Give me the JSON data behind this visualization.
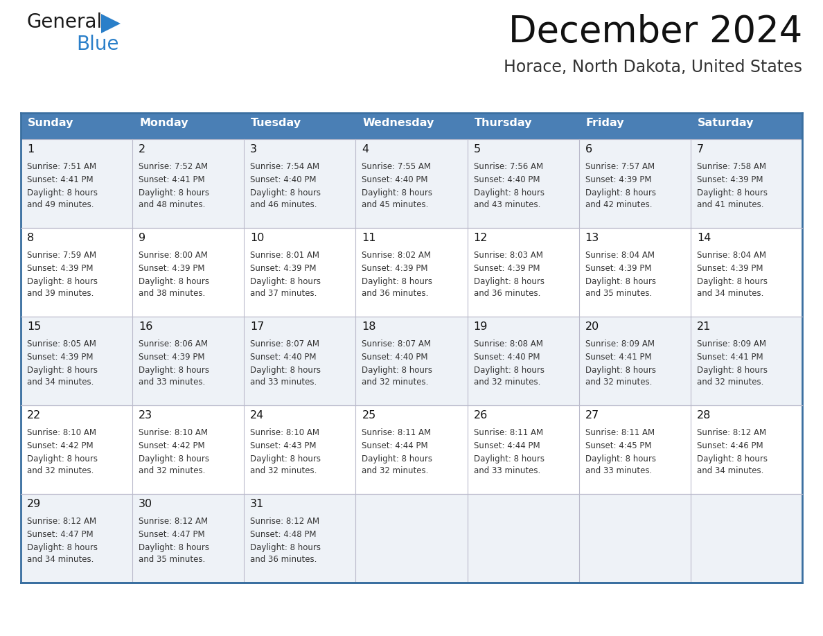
{
  "title": "December 2024",
  "subtitle": "Horace, North Dakota, United States",
  "header_bg_color": "#4a7fb5",
  "header_text_color": "#ffffff",
  "row_colors": [
    "#eef2f7",
    "#ffffff"
  ],
  "border_color": "#3a6fa0",
  "text_color": "#333333",
  "day_headers": [
    "Sunday",
    "Monday",
    "Tuesday",
    "Wednesday",
    "Thursday",
    "Friday",
    "Saturday"
  ],
  "days": [
    {
      "day": 1,
      "col": 0,
      "row": 0,
      "sunrise": "7:51 AM",
      "sunset": "4:41 PM",
      "daylight": "8 hours and 49 minutes."
    },
    {
      "day": 2,
      "col": 1,
      "row": 0,
      "sunrise": "7:52 AM",
      "sunset": "4:41 PM",
      "daylight": "8 hours and 48 minutes."
    },
    {
      "day": 3,
      "col": 2,
      "row": 0,
      "sunrise": "7:54 AM",
      "sunset": "4:40 PM",
      "daylight": "8 hours and 46 minutes."
    },
    {
      "day": 4,
      "col": 3,
      "row": 0,
      "sunrise": "7:55 AM",
      "sunset": "4:40 PM",
      "daylight": "8 hours and 45 minutes."
    },
    {
      "day": 5,
      "col": 4,
      "row": 0,
      "sunrise": "7:56 AM",
      "sunset": "4:40 PM",
      "daylight": "8 hours and 43 minutes."
    },
    {
      "day": 6,
      "col": 5,
      "row": 0,
      "sunrise": "7:57 AM",
      "sunset": "4:39 PM",
      "daylight": "8 hours and 42 minutes."
    },
    {
      "day": 7,
      "col": 6,
      "row": 0,
      "sunrise": "7:58 AM",
      "sunset": "4:39 PM",
      "daylight": "8 hours and 41 minutes."
    },
    {
      "day": 8,
      "col": 0,
      "row": 1,
      "sunrise": "7:59 AM",
      "sunset": "4:39 PM",
      "daylight": "8 hours and 39 minutes."
    },
    {
      "day": 9,
      "col": 1,
      "row": 1,
      "sunrise": "8:00 AM",
      "sunset": "4:39 PM",
      "daylight": "8 hours and 38 minutes."
    },
    {
      "day": 10,
      "col": 2,
      "row": 1,
      "sunrise": "8:01 AM",
      "sunset": "4:39 PM",
      "daylight": "8 hours and 37 minutes."
    },
    {
      "day": 11,
      "col": 3,
      "row": 1,
      "sunrise": "8:02 AM",
      "sunset": "4:39 PM",
      "daylight": "8 hours and 36 minutes."
    },
    {
      "day": 12,
      "col": 4,
      "row": 1,
      "sunrise": "8:03 AM",
      "sunset": "4:39 PM",
      "daylight": "8 hours and 36 minutes."
    },
    {
      "day": 13,
      "col": 5,
      "row": 1,
      "sunrise": "8:04 AM",
      "sunset": "4:39 PM",
      "daylight": "8 hours and 35 minutes."
    },
    {
      "day": 14,
      "col": 6,
      "row": 1,
      "sunrise": "8:04 AM",
      "sunset": "4:39 PM",
      "daylight": "8 hours and 34 minutes."
    },
    {
      "day": 15,
      "col": 0,
      "row": 2,
      "sunrise": "8:05 AM",
      "sunset": "4:39 PM",
      "daylight": "8 hours and 34 minutes."
    },
    {
      "day": 16,
      "col": 1,
      "row": 2,
      "sunrise": "8:06 AM",
      "sunset": "4:39 PM",
      "daylight": "8 hours and 33 minutes."
    },
    {
      "day": 17,
      "col": 2,
      "row": 2,
      "sunrise": "8:07 AM",
      "sunset": "4:40 PM",
      "daylight": "8 hours and 33 minutes."
    },
    {
      "day": 18,
      "col": 3,
      "row": 2,
      "sunrise": "8:07 AM",
      "sunset": "4:40 PM",
      "daylight": "8 hours and 32 minutes."
    },
    {
      "day": 19,
      "col": 4,
      "row": 2,
      "sunrise": "8:08 AM",
      "sunset": "4:40 PM",
      "daylight": "8 hours and 32 minutes."
    },
    {
      "day": 20,
      "col": 5,
      "row": 2,
      "sunrise": "8:09 AM",
      "sunset": "4:41 PM",
      "daylight": "8 hours and 32 minutes."
    },
    {
      "day": 21,
      "col": 6,
      "row": 2,
      "sunrise": "8:09 AM",
      "sunset": "4:41 PM",
      "daylight": "8 hours and 32 minutes."
    },
    {
      "day": 22,
      "col": 0,
      "row": 3,
      "sunrise": "8:10 AM",
      "sunset": "4:42 PM",
      "daylight": "8 hours and 32 minutes."
    },
    {
      "day": 23,
      "col": 1,
      "row": 3,
      "sunrise": "8:10 AM",
      "sunset": "4:42 PM",
      "daylight": "8 hours and 32 minutes."
    },
    {
      "day": 24,
      "col": 2,
      "row": 3,
      "sunrise": "8:10 AM",
      "sunset": "4:43 PM",
      "daylight": "8 hours and 32 minutes."
    },
    {
      "day": 25,
      "col": 3,
      "row": 3,
      "sunrise": "8:11 AM",
      "sunset": "4:44 PM",
      "daylight": "8 hours and 32 minutes."
    },
    {
      "day": 26,
      "col": 4,
      "row": 3,
      "sunrise": "8:11 AM",
      "sunset": "4:44 PM",
      "daylight": "8 hours and 33 minutes."
    },
    {
      "day": 27,
      "col": 5,
      "row": 3,
      "sunrise": "8:11 AM",
      "sunset": "4:45 PM",
      "daylight": "8 hours and 33 minutes."
    },
    {
      "day": 28,
      "col": 6,
      "row": 3,
      "sunrise": "8:12 AM",
      "sunset": "4:46 PM",
      "daylight": "8 hours and 34 minutes."
    },
    {
      "day": 29,
      "col": 0,
      "row": 4,
      "sunrise": "8:12 AM",
      "sunset": "4:47 PM",
      "daylight": "8 hours and 34 minutes."
    },
    {
      "day": 30,
      "col": 1,
      "row": 4,
      "sunrise": "8:12 AM",
      "sunset": "4:47 PM",
      "daylight": "8 hours and 35 minutes."
    },
    {
      "day": 31,
      "col": 2,
      "row": 4,
      "sunrise": "8:12 AM",
      "sunset": "4:48 PM",
      "daylight": "8 hours and 36 minutes."
    }
  ],
  "num_rows": 5,
  "logo_general_color": "#1a1a1a",
  "logo_blue_color": "#2a7fc9",
  "logo_triangle_color": "#2a7fc9"
}
